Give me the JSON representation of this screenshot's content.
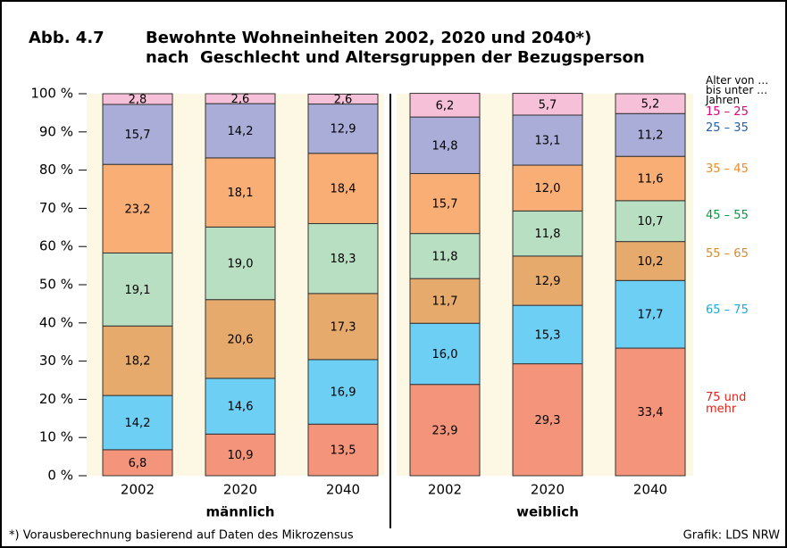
{
  "chart_data": {
    "type": "stacked_bar",
    "figure_number": "Abb. 4.7",
    "title": "Bewohnte Wohneinheiten 2002, 2020 und 2040*)",
    "subtitle": "nach  Geschlecht und Altersgruppen der Bezugsperson",
    "legend_title": [
      "Alter von …",
      "bis unter …",
      "Jahren"
    ],
    "categories": [
      "2002",
      "2020",
      "2040",
      "2002",
      "2020",
      "2040"
    ],
    "groups": [
      "männlich",
      "weiblich"
    ],
    "ylim": [
      0,
      100
    ],
    "yticks": [
      {
        "value": 0,
        "label": "0 %"
      },
      {
        "value": 10,
        "label": "10 %"
      },
      {
        "value": 20,
        "label": "20 %"
      },
      {
        "value": 30,
        "label": "30 %"
      },
      {
        "value": 40,
        "label": "40 %"
      },
      {
        "value": 50,
        "label": "50 %"
      },
      {
        "value": 60,
        "label": "60 %"
      },
      {
        "value": 70,
        "label": "70 %"
      },
      {
        "value": 80,
        "label": "80 %"
      },
      {
        "value": 90,
        "label": "90 %"
      },
      {
        "value": 100,
        "label": "100 %"
      }
    ],
    "series": [
      {
        "name": "75 und mehr",
        "color": "#f4947b",
        "label_color": "#e2231a",
        "values": [
          6.8,
          10.9,
          13.5,
          23.9,
          29.3,
          33.4
        ],
        "value_labels": [
          "6,8",
          "10,9",
          "13,5",
          "23,9",
          "29,3",
          "33,4"
        ]
      },
      {
        "name": "65 – 75",
        "color": "#6ecff5",
        "label_color": "#1aa9e0",
        "values": [
          14.2,
          14.6,
          16.9,
          16.0,
          15.3,
          17.7
        ],
        "value_labels": [
          "14,2",
          "14,6",
          "16,9",
          "16,0",
          "15,3",
          "17,7"
        ]
      },
      {
        "name": "55 – 65",
        "color": "#e6aa6c",
        "label_color": "#d88a2a",
        "values": [
          18.2,
          20.6,
          17.3,
          11.7,
          12.9,
          10.2
        ],
        "value_labels": [
          "18,2",
          "20,6",
          "17,3",
          "11,7",
          "12,9",
          "10,2"
        ]
      },
      {
        "name": "45 – 55",
        "color": "#b8dfc2",
        "label_color": "#009a3e",
        "values": [
          19.1,
          19.0,
          18.3,
          11.8,
          11.8,
          10.7
        ],
        "value_labels": [
          "19,1",
          "19,0",
          "18,3",
          "11,8",
          "11,8",
          "10,7"
        ]
      },
      {
        "name": "35 – 45",
        "color": "#f8ae74",
        "label_color": "#f08a24",
        "values": [
          23.2,
          18.1,
          18.4,
          15.7,
          12.0,
          11.6
        ],
        "value_labels": [
          "23,2",
          "18,1",
          "18,4",
          "15,7",
          "12,0",
          "11,6"
        ]
      },
      {
        "name": "25 – 35",
        "color": "#aaadd8",
        "label_color": "#1f5fb0",
        "values": [
          15.7,
          14.2,
          12.9,
          14.8,
          13.1,
          11.2
        ],
        "value_labels": [
          "15,7",
          "14,2",
          "12,9",
          "14,8",
          "13,1",
          "11,2"
        ]
      },
      {
        "name": "15 – 25",
        "color": "#f7c0d9",
        "label_color": "#e6007e",
        "values": [
          2.8,
          2.6,
          2.6,
          6.2,
          5.7,
          5.2
        ],
        "value_labels": [
          "2,8",
          "2,6",
          "2,6",
          "6,2",
          "5,7",
          "5,2"
        ]
      }
    ],
    "footnote": "*) Vorausberechnung basierend auf Daten des Mikrozensus",
    "source": "Grafik: LDS NRW"
  }
}
